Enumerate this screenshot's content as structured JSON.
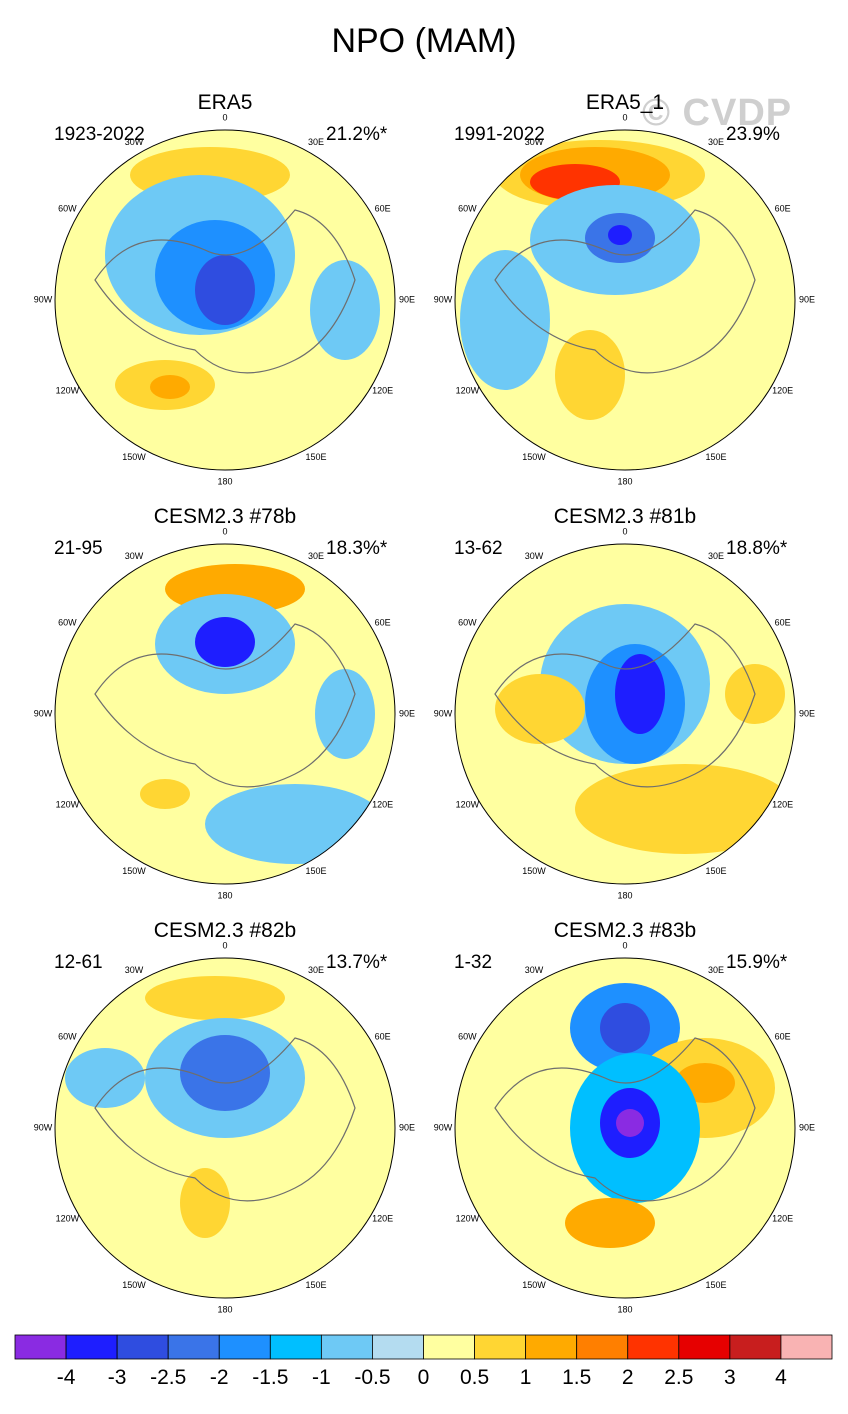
{
  "title": "NPO (MAM)",
  "watermark": "© CVDP",
  "panels": [
    {
      "title": "ERA5",
      "period": "1923-2022",
      "variance": "21.2%*"
    },
    {
      "title": "ERA5_1",
      "period": "1991-2022",
      "variance": "23.9%"
    },
    {
      "title": "CESM2.3 #78b",
      "period": "21-95",
      "variance": "18.3%*"
    },
    {
      "title": "CESM2.3 #81b",
      "period": "13-62",
      "variance": "18.8%*"
    },
    {
      "title": "CESM2.3 #82b",
      "period": "12-61",
      "variance": "13.7%*"
    },
    {
      "title": "CESM2.3 #83b",
      "period": "1-32",
      "variance": "15.9%*"
    }
  ],
  "lon_labels": [
    "180",
    "150E",
    "120E",
    "90E",
    "60E",
    "30E",
    "0",
    "30W",
    "60W",
    "90W",
    "120W",
    "150W"
  ],
  "chart_data": {
    "type": "heatmap",
    "projection": "north polar stereographic",
    "field": "NPO pattern (MAM), standardized regression",
    "colorbar": {
      "levels": [
        "-4",
        "-3",
        "-2.5",
        "-2",
        "-1.5",
        "-1",
        "-0.5",
        "0",
        "0.5",
        "1",
        "1.5",
        "2",
        "2.5",
        "3",
        "4"
      ],
      "colors": [
        "#8a2be2",
        "#1e1eff",
        "#2f4de0",
        "#3a74e8",
        "#1e90ff",
        "#00bfff",
        "#6ec9f5",
        "#b4dcf0",
        "#ffffa0",
        "#ffd633",
        "#ffaa00",
        "#ff7f00",
        "#ff3300",
        "#e60000",
        "#c81e1e",
        "#f9b3b3"
      ]
    }
  }
}
